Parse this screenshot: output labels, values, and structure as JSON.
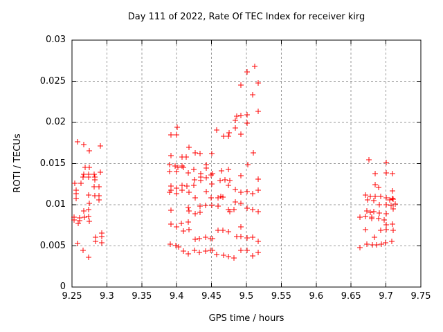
{
  "chart_data": {
    "type": "scatter",
    "title": "Day 111 of 2022, Rate Of TEC Index for receiver kirg",
    "xlabel": "GPS time / hours",
    "ylabel": "ROTI / TECUs",
    "xlim": [
      9.25,
      9.75
    ],
    "ylim": [
      0,
      0.03
    ],
    "xticks": [
      9.25,
      9.3,
      9.35,
      9.4,
      9.45,
      9.5,
      9.55,
      9.6,
      9.65,
      9.7,
      9.75
    ],
    "xtick_labels": [
      "9.25",
      "9.3",
      "9.35",
      "9.4",
      "9.45",
      "9.5",
      "9.55",
      "9.6",
      "9.65",
      "9.7",
      "9.75"
    ],
    "yticks": [
      0,
      0.005,
      0.01,
      0.015,
      0.02,
      0.025,
      0.03
    ],
    "ytick_labels": [
      "0",
      "0.005",
      "0.01",
      "0.015",
      "0.02",
      "0.025",
      "0.03"
    ],
    "grid": true,
    "legend": "none",
    "marker": "plus",
    "colors": {
      "marker": "#ff0000",
      "grid": "#9a9a9a",
      "axis": "#000000",
      "background": "#ffffff"
    },
    "series": [
      {
        "name": "ROTI",
        "points": [
          [
            9.2576,
            0.01765
          ],
          [
            9.2666,
            0.01729
          ],
          [
            9.2751,
            0.01658
          ],
          [
            9.2907,
            0.01714
          ],
          [
            9.2691,
            0.01456
          ],
          [
            9.2751,
            0.01456
          ],
          [
            9.2666,
            0.01372
          ],
          [
            9.2741,
            0.01372
          ],
          [
            9.2815,
            0.01372
          ],
          [
            9.2907,
            0.01395
          ],
          [
            9.2659,
            0.01336
          ],
          [
            9.2741,
            0.01336
          ],
          [
            9.2824,
            0.01336
          ],
          [
            9.283,
            0.01303
          ],
          [
            9.2543,
            0.01261
          ],
          [
            9.2626,
            0.01261
          ],
          [
            9.2817,
            0.01218
          ],
          [
            9.289,
            0.01218
          ],
          [
            9.256,
            0.01176
          ],
          [
            9.256,
            0.01134
          ],
          [
            9.2741,
            0.0112
          ],
          [
            9.2824,
            0.01112
          ],
          [
            9.289,
            0.01107
          ],
          [
            9.256,
            0.01073
          ],
          [
            9.289,
            0.01059
          ],
          [
            9.2751,
            0.01017
          ],
          [
            9.2666,
            0.00924
          ],
          [
            9.2741,
            0.00944
          ],
          [
            9.2527,
            0.00849
          ],
          [
            9.2527,
            0.00813
          ],
          [
            9.2609,
            0.0084
          ],
          [
            9.2609,
            0.00804
          ],
          [
            9.2676,
            0.00849
          ],
          [
            9.2741,
            0.0086
          ],
          [
            9.2751,
            0.00798
          ],
          [
            9.2592,
            0.00771
          ],
          [
            9.2924,
            0.00658
          ],
          [
            9.284,
            0.00602
          ],
          [
            9.2924,
            0.00616
          ],
          [
            9.2576,
            0.00532
          ],
          [
            9.284,
            0.00552
          ],
          [
            9.2924,
            0.0054
          ],
          [
            9.2659,
            0.00448
          ],
          [
            9.2741,
            0.00364
          ],
          [
            9.4008,
            0.01941
          ],
          [
            9.3922,
            0.01849
          ],
          [
            9.3998,
            0.01849
          ],
          [
            9.4174,
            0.01695
          ],
          [
            9.4263,
            0.01633
          ],
          [
            9.4338,
            0.01619
          ],
          [
            9.4504,
            0.01622
          ],
          [
            9.3916,
            0.01597
          ],
          [
            9.4081,
            0.01582
          ],
          [
            9.414,
            0.01577
          ],
          [
            9.3899,
            0.01485
          ],
          [
            9.3981,
            0.01471
          ],
          [
            9.4015,
            0.01456
          ],
          [
            9.4081,
            0.01471
          ],
          [
            9.4098,
            0.01456
          ],
          [
            9.3899,
            0.01401
          ],
          [
            9.3998,
            0.01401
          ],
          [
            9.4164,
            0.01387
          ],
          [
            9.4246,
            0.01429
          ],
          [
            9.4428,
            0.01485
          ],
          [
            9.4428,
            0.01443
          ],
          [
            9.4517,
            0.01381
          ],
          [
            9.4499,
            0.01361
          ],
          [
            9.4345,
            0.01381
          ],
          [
            9.4345,
            0.01336
          ],
          [
            9.4428,
            0.0133
          ],
          [
            9.4253,
            0.01303
          ],
          [
            9.4345,
            0.01294
          ],
          [
            9.4075,
            0.01238
          ],
          [
            9.4147,
            0.01224
          ],
          [
            9.4246,
            0.01232
          ],
          [
            9.3922,
            0.01224
          ],
          [
            9.3922,
            0.01176
          ],
          [
            9.3998,
            0.01204
          ],
          [
            9.4081,
            0.01176
          ],
          [
            9.4174,
            0.01148
          ],
          [
            9.3899,
            0.01148
          ],
          [
            9.3998,
            0.01134
          ],
          [
            9.4263,
            0.0108
          ],
          [
            9.4428,
            0.01162
          ],
          [
            9.4504,
            0.01248
          ],
          [
            9.4499,
            0.01084
          ],
          [
            9.4338,
            0.00986
          ],
          [
            9.4411,
            0.00994
          ],
          [
            9.4164,
            0.00966
          ],
          [
            9.3916,
            0.00933
          ],
          [
            9.4174,
            0.00924
          ],
          [
            9.4263,
            0.00891
          ],
          [
            9.4338,
            0.0091
          ],
          [
            9.3916,
            0.00762
          ],
          [
            9.3998,
            0.00734
          ],
          [
            9.4065,
            0.00771
          ],
          [
            9.4164,
            0.0079
          ],
          [
            9.4098,
            0.00678
          ],
          [
            9.4174,
            0.007
          ],
          [
            9.4263,
            0.00582
          ],
          [
            9.4329,
            0.00588
          ],
          [
            9.4411,
            0.00602
          ],
          [
            9.4484,
            0.00588
          ],
          [
            9.3909,
            0.00518
          ],
          [
            9.3993,
            0.00508
          ],
          [
            9.4023,
            0.00487
          ],
          [
            9.4098,
            0.00434
          ],
          [
            9.4164,
            0.00406
          ],
          [
            9.4253,
            0.00448
          ],
          [
            9.4329,
            0.0042
          ],
          [
            9.4411,
            0.00434
          ],
          [
            9.4484,
            0.00443
          ],
          [
            9.5119,
            0.02681
          ],
          [
            9.5007,
            0.02613
          ],
          [
            9.4918,
            0.02456
          ],
          [
            9.5172,
            0.02479
          ],
          [
            9.5089,
            0.02339
          ],
          [
            9.5172,
            0.02134
          ],
          [
            9.4918,
            0.02087
          ],
          [
            9.4858,
            0.02078
          ],
          [
            9.5007,
            0.02092
          ],
          [
            9.4841,
            0.02023
          ],
          [
            9.5007,
            0.01989
          ],
          [
            9.4577,
            0.01905
          ],
          [
            9.4841,
            0.01933
          ],
          [
            9.4752,
            0.01871
          ],
          [
            9.4677,
            0.01828
          ],
          [
            9.4742,
            0.01836
          ],
          [
            9.4921,
            0.01857
          ],
          [
            9.5099,
            0.0163
          ],
          [
            9.5017,
            0.0149
          ],
          [
            9.4643,
            0.01414
          ],
          [
            9.4742,
            0.01429
          ],
          [
            9.4924,
            0.0135
          ],
          [
            9.4626,
            0.01294
          ],
          [
            9.4692,
            0.01303
          ],
          [
            9.4759,
            0.01294
          ],
          [
            9.5172,
            0.01311
          ],
          [
            9.4742,
            0.01238
          ],
          [
            9.4841,
            0.01182
          ],
          [
            9.4918,
            0.01154
          ],
          [
            9.5007,
            0.01162
          ],
          [
            9.5089,
            0.01134
          ],
          [
            9.5172,
            0.01176
          ],
          [
            9.466,
            0.01092
          ],
          [
            9.4628,
            0.01105
          ],
          [
            9.4593,
            0.01087
          ],
          [
            9.4841,
            0.01036
          ],
          [
            9.4918,
            0.01017
          ],
          [
            9.4593,
            0.00981
          ],
          [
            9.4504,
            0.00992
          ],
          [
            9.4742,
            0.00945
          ],
          [
            9.4759,
            0.00916
          ],
          [
            9.4824,
            0.00937
          ],
          [
            9.5007,
            0.00958
          ],
          [
            9.5089,
            0.00939
          ],
          [
            9.5172,
            0.00916
          ],
          [
            9.4918,
            0.00729
          ],
          [
            9.4593,
            0.00687
          ],
          [
            9.466,
            0.00692
          ],
          [
            9.4742,
            0.00672
          ],
          [
            9.4858,
            0.00616
          ],
          [
            9.4924,
            0.00616
          ],
          [
            9.4511,
            0.00588
          ],
          [
            9.5007,
            0.00597
          ],
          [
            9.5089,
            0.00608
          ],
          [
            9.5172,
            0.00552
          ],
          [
            9.4924,
            0.00448
          ],
          [
            9.5007,
            0.00448
          ],
          [
            9.4511,
            0.00448
          ],
          [
            9.4577,
            0.00392
          ],
          [
            9.4676,
            0.00384
          ],
          [
            9.4742,
            0.00372
          ],
          [
            9.4824,
            0.0035
          ],
          [
            9.5089,
            0.00378
          ],
          [
            9.5172,
            0.0042
          ],
          [
            9.676,
            0.01549
          ],
          [
            9.7007,
            0.01513
          ],
          [
            9.6842,
            0.01378
          ],
          [
            9.7001,
            0.01389
          ],
          [
            9.709,
            0.01376
          ],
          [
            9.6842,
            0.01241
          ],
          [
            9.6895,
            0.01206
          ],
          [
            9.709,
            0.01166
          ],
          [
            9.6704,
            0.01118
          ],
          [
            9.6776,
            0.01105
          ],
          [
            9.6842,
            0.01097
          ],
          [
            9.6925,
            0.01097
          ],
          [
            9.7007,
            0.01088
          ],
          [
            9.709,
            0.01078
          ],
          [
            9.6733,
            0.01059
          ],
          [
            9.6823,
            0.0105
          ],
          [
            9.7054,
            0.01061
          ],
          [
            9.7103,
            0.0107
          ],
          [
            9.6905,
            0.01
          ],
          [
            9.7004,
            0.00997
          ],
          [
            9.7076,
            0.00994
          ],
          [
            9.7136,
            0.01006
          ],
          [
            9.6723,
            0.00922
          ],
          [
            9.6773,
            0.0091
          ],
          [
            9.6823,
            0.00916
          ],
          [
            9.6905,
            0.00902
          ],
          [
            9.7004,
            0.00888
          ],
          [
            9.7106,
            0.00952
          ],
          [
            9.6627,
            0.00849
          ],
          [
            9.671,
            0.00855
          ],
          [
            9.6793,
            0.00849
          ],
          [
            9.6793,
            0.00828
          ],
          [
            9.6892,
            0.00832
          ],
          [
            9.6974,
            0.00813
          ],
          [
            9.7007,
            0.00756
          ],
          [
            9.709,
            0.00765
          ],
          [
            9.671,
            0.007
          ],
          [
            9.6925,
            0.00692
          ],
          [
            9.7007,
            0.007
          ],
          [
            9.7106,
            0.00692
          ],
          [
            9.6835,
            0.00608
          ],
          [
            9.6991,
            0.0054
          ],
          [
            9.7081,
            0.00552
          ],
          [
            9.6726,
            0.00524
          ],
          [
            9.6802,
            0.00513
          ],
          [
            9.6868,
            0.00513
          ],
          [
            9.6935,
            0.00524
          ],
          [
            9.6627,
            0.00476
          ]
        ]
      }
    ]
  }
}
